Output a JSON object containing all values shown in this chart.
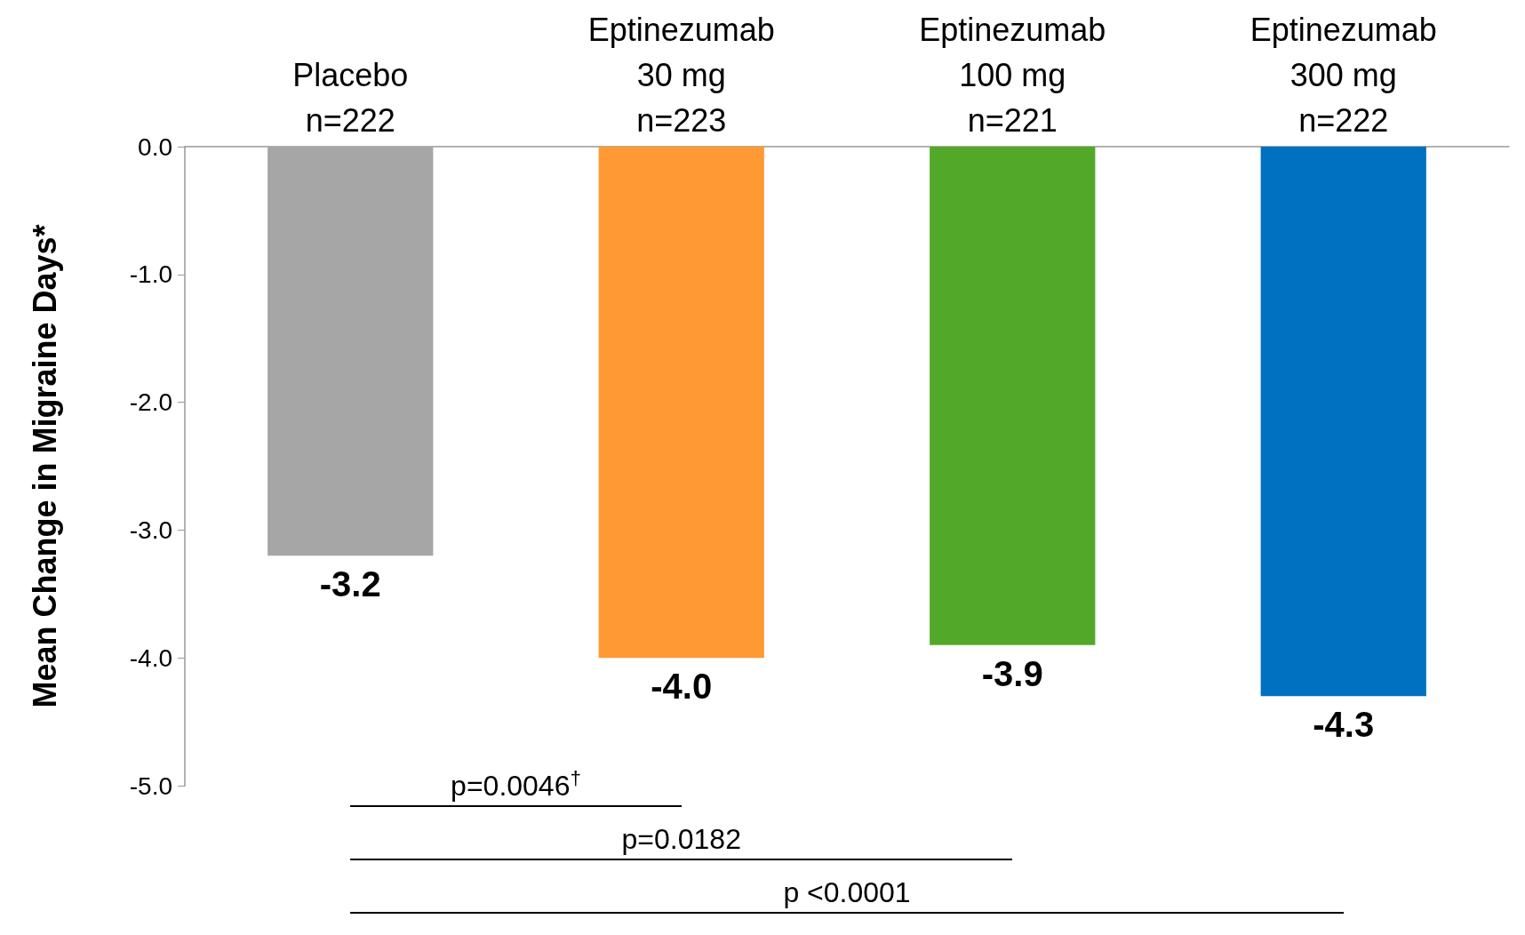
{
  "chart_data": {
    "type": "bar",
    "ylabel": "Mean Change in Migraine Days*",
    "categories": [
      "Placebo\nn=222",
      "Eptinezumab\n30 mg\nn=223",
      "Eptinezumab\n100 mg\nn=221",
      "Eptinezumab\n300 mg\nn=222"
    ],
    "values": [
      -3.2,
      -4.0,
      -3.9,
      -4.3
    ],
    "colors": [
      "#a6a6a6",
      "#ff9933",
      "#52a828",
      "#0070c0"
    ],
    "value_labels": [
      "-3.2",
      "-4.0",
      "-3.9",
      "-4.3"
    ],
    "ylim": [
      -5,
      0
    ],
    "yticks": [
      {
        "value": -5,
        "label": "-5.0"
      },
      {
        "value": -4,
        "label": "-4.0"
      },
      {
        "value": -3,
        "label": "-3.0"
      },
      {
        "value": -2,
        "label": "-2.0"
      },
      {
        "value": -1,
        "label": "-1.0"
      },
      {
        "value": 0,
        "label": "0.0"
      }
    ],
    "annotations": [
      "p=0.0046$^{†}$",
      "p=0.0182",
      "p <0.0001"
    ],
    "grid": false
  }
}
